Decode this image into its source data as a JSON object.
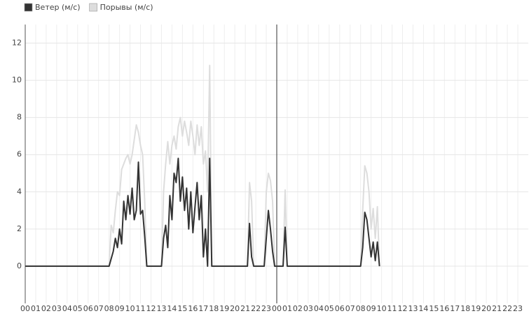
{
  "chart_data": {
    "type": "line",
    "x": [
      0,
      8.0,
      8.2,
      8.4,
      8.6,
      8.8,
      9.0,
      9.2,
      9.4,
      9.6,
      9.8,
      10.0,
      10.2,
      10.4,
      10.6,
      10.8,
      11.0,
      11.2,
      11.4,
      11.6,
      11.8,
      12.0,
      13.0,
      13.2,
      13.4,
      13.6,
      13.8,
      14.0,
      14.2,
      14.4,
      14.6,
      14.8,
      15.0,
      15.2,
      15.4,
      15.6,
      15.8,
      16.0,
      16.2,
      16.4,
      16.6,
      16.8,
      17.0,
      17.2,
      17.4,
      17.6,
      17.8,
      21.2,
      21.4,
      21.6,
      21.8,
      22.8,
      23.0,
      23.2,
      23.4,
      23.6,
      23.8,
      24.6,
      24.8,
      25.0,
      32.0,
      32.2,
      32.4,
      32.6,
      32.8,
      33.0,
      33.2,
      33.4,
      33.6,
      33.8
    ],
    "series": [
      {
        "name": "Порывы (м/с)",
        "color": "#dddddd",
        "values": [
          0,
          0,
          2.2,
          1.8,
          3.0,
          4.0,
          3.8,
          5.2,
          5.5,
          5.8,
          6.0,
          5.5,
          6.0,
          6.8,
          7.6,
          7.2,
          6.5,
          6.0,
          3.5,
          0,
          0,
          0,
          0,
          4.0,
          5.5,
          6.7,
          5.5,
          6.5,
          7.0,
          6.3,
          7.5,
          8.0,
          7.0,
          7.8,
          7.2,
          6.5,
          7.8,
          7.0,
          6.0,
          7.6,
          6.5,
          7.5,
          5.5,
          6.2,
          4.0,
          10.8,
          0,
          0,
          4.5,
          3.5,
          0,
          0,
          4.0,
          5.0,
          4.6,
          3.5,
          0,
          0,
          4.1,
          0,
          0,
          3.0,
          5.4,
          5.0,
          4.0,
          2.0,
          3.1,
          1.5,
          3.2,
          0
        ]
      },
      {
        "name": "Ветер (м/с)",
        "color": "#333333",
        "values": [
          0,
          0,
          0.4,
          0.8,
          1.5,
          1.0,
          2.0,
          1.2,
          3.5,
          2.5,
          3.8,
          2.8,
          4.2,
          2.5,
          3.0,
          5.6,
          2.8,
          3.0,
          1.6,
          0,
          0,
          0,
          0,
          1.5,
          2.2,
          1.0,
          3.8,
          2.5,
          5.0,
          4.5,
          5.8,
          3.5,
          4.8,
          3.0,
          4.2,
          2.0,
          4.0,
          1.8,
          3.2,
          4.5,
          2.5,
          3.8,
          0.5,
          2.0,
          0,
          5.8,
          0,
          0,
          2.3,
          0.5,
          0,
          0,
          1.5,
          3.0,
          2.0,
          0.8,
          0,
          0,
          2.1,
          0,
          0,
          1.0,
          2.9,
          2.5,
          1.5,
          0.5,
          1.3,
          0.3,
          1.3,
          0
        ]
      }
    ],
    "legend_order": [
      1,
      0
    ],
    "xlim": [
      0,
      48
    ],
    "xticks": [
      {
        "value": 0,
        "label": "00"
      },
      {
        "value": 1,
        "label": "01"
      },
      {
        "value": 2,
        "label": "02"
      },
      {
        "value": 3,
        "label": "03"
      },
      {
        "value": 4,
        "label": "04"
      },
      {
        "value": 5,
        "label": "05"
      },
      {
        "value": 6,
        "label": "06"
      },
      {
        "value": 7,
        "label": "07"
      },
      {
        "value": 8,
        "label": "08"
      },
      {
        "value": 9,
        "label": "09"
      },
      {
        "value": 10,
        "label": "10"
      },
      {
        "value": 11,
        "label": "11"
      },
      {
        "value": 12,
        "label": "12"
      },
      {
        "value": 13,
        "label": "13"
      },
      {
        "value": 14,
        "label": "14"
      },
      {
        "value": 15,
        "label": "15"
      },
      {
        "value": 16,
        "label": "16"
      },
      {
        "value": 17,
        "label": "17"
      },
      {
        "value": 18,
        "label": "18"
      },
      {
        "value": 19,
        "label": "19"
      },
      {
        "value": 20,
        "label": "20"
      },
      {
        "value": 21,
        "label": "21"
      },
      {
        "value": 22,
        "label": "22"
      },
      {
        "value": 23,
        "label": "23"
      },
      {
        "value": 24,
        "label": "00"
      },
      {
        "value": 25,
        "label": "01"
      },
      {
        "value": 26,
        "label": "02"
      },
      {
        "value": 27,
        "label": "03"
      },
      {
        "value": 28,
        "label": "04"
      },
      {
        "value": 29,
        "label": "05"
      },
      {
        "value": 30,
        "label": "06"
      },
      {
        "value": 31,
        "label": "07"
      },
      {
        "value": 32,
        "label": "08"
      },
      {
        "value": 33,
        "label": "09"
      },
      {
        "value": 34,
        "label": "10"
      },
      {
        "value": 35,
        "label": "11"
      },
      {
        "value": 36,
        "label": "12"
      },
      {
        "value": 37,
        "label": "13"
      },
      {
        "value": 38,
        "label": "14"
      },
      {
        "value": 39,
        "label": "15"
      },
      {
        "value": 40,
        "label": "16"
      },
      {
        "value": 41,
        "label": "17"
      },
      {
        "value": 42,
        "label": "18"
      },
      {
        "value": 43,
        "label": "19"
      },
      {
        "value": 44,
        "label": "20"
      },
      {
        "value": 45,
        "label": "21"
      },
      {
        "value": 46,
        "label": "22"
      },
      {
        "value": 47,
        "label": "23"
      }
    ],
    "ylim": [
      -2,
      13
    ],
    "yticks": [
      0,
      2,
      4,
      6,
      8,
      10,
      12
    ],
    "day_separator": 24,
    "grid": true
  }
}
